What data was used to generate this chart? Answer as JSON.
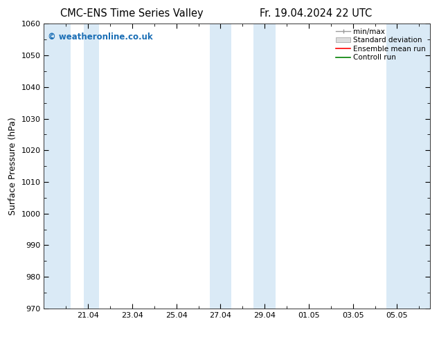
{
  "title_left": "CMC-ENS Time Series Valley",
  "title_right": "Fr. 19.04.2024 22 UTC",
  "ylabel": "Surface Pressure (hPa)",
  "ylim": [
    970,
    1060
  ],
  "yticks": [
    970,
    980,
    990,
    1000,
    1010,
    1020,
    1030,
    1040,
    1050,
    1060
  ],
  "x_tick_labels": [
    "21.04",
    "23.04",
    "25.04",
    "27.04",
    "29.04",
    "01.05",
    "03.05",
    "05.05"
  ],
  "x_tick_positions": [
    2,
    4,
    6,
    8,
    10,
    12,
    14,
    16
  ],
  "xlim": [
    0,
    17.5
  ],
  "shaded_bands": [
    {
      "xmin": 0,
      "xmax": 1.2
    },
    {
      "xmin": 1.8,
      "xmax": 2.5
    },
    {
      "xmin": 7.5,
      "xmax": 8.5
    },
    {
      "xmin": 9.5,
      "xmax": 10.5
    },
    {
      "xmin": 15.5,
      "xmax": 17.5
    }
  ],
  "shade_color": "#daeaf6",
  "background_color": "#ffffff",
  "plot_bg_color": "#ffffff",
  "watermark": "© weatheronline.co.uk",
  "watermark_color": "#1a6eb5",
  "legend_items": [
    {
      "label": "min/max",
      "color": "#999999",
      "type": "errorbar"
    },
    {
      "label": "Standard deviation",
      "color": "#cccccc",
      "type": "bar"
    },
    {
      "label": "Ensemble mean run",
      "color": "#ff0000",
      "type": "line"
    },
    {
      "label": "Controll run",
      "color": "#008000",
      "type": "line"
    }
  ],
  "title_fontsize": 10.5,
  "tick_fontsize": 8,
  "ylabel_fontsize": 9,
  "legend_fontsize": 7.5
}
